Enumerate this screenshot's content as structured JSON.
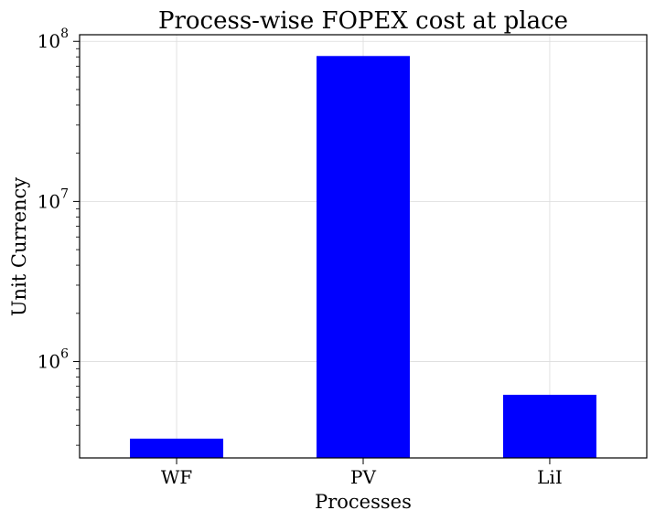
{
  "chart_data": {
    "type": "bar",
    "title": "Process-wise FOPEX cost at place",
    "xlabel": "Processes",
    "ylabel": "Unit Currency",
    "categories": [
      "WF",
      "PV",
      "LiI"
    ],
    "values": [
      330000,
      81000000,
      620000
    ],
    "yscale": "log",
    "ylim": [
      250000,
      110000000
    ],
    "yticks": [
      {
        "base": "10",
        "exp": "6",
        "value": 1000000
      },
      {
        "base": "10",
        "exp": "7",
        "value": 10000000
      },
      {
        "base": "10",
        "exp": "8",
        "value": 100000000
      }
    ],
    "bar_color": "#0000ff",
    "grid": true
  }
}
